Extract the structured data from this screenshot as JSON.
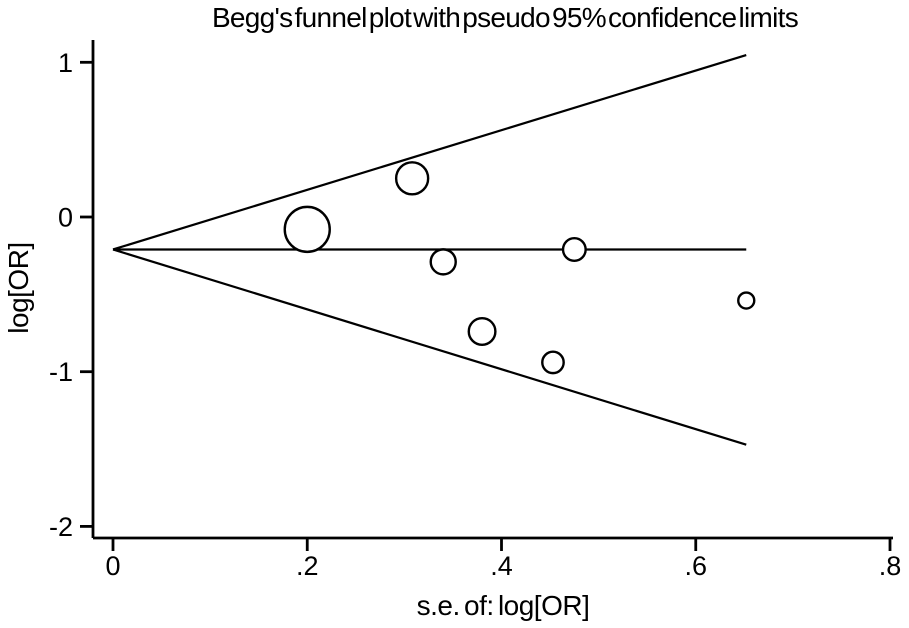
{
  "chart_data": {
    "type": "scatter",
    "title": "Begg's funnel plot with pseudo 95% confidence limits",
    "xlabel": "s.e. of: log[OR]",
    "ylabel": "log[OR]",
    "xlim": [
      0,
      0.8
    ],
    "ylim": [
      -2.08,
      1.14
    ],
    "x_ticks": [
      {
        "value": 0.0,
        "label": "0"
      },
      {
        "value": 0.2,
        "label": ".2"
      },
      {
        "value": 0.4,
        "label": ".4"
      },
      {
        "value": 0.6,
        "label": ".6"
      },
      {
        "value": 0.8,
        "label": ".8"
      }
    ],
    "y_ticks": [
      {
        "value": 1,
        "label": "1"
      },
      {
        "value": 0,
        "label": "0"
      },
      {
        "value": -1,
        "label": "-1"
      },
      {
        "value": -2,
        "label": "-2"
      }
    ],
    "grid": false,
    "legend": "none",
    "pooled_log_or": -0.21,
    "funnel": {
      "center_log_or": -0.21,
      "max_se": 0.652,
      "upper_end_log_or": 1.047,
      "lower_end_log_or": -1.472
    },
    "points": [
      {
        "se": 0.2,
        "log_or": -0.08,
        "radius_px": 22.5
      },
      {
        "se": 0.308,
        "log_or": 0.25,
        "radius_px": 16
      },
      {
        "se": 0.34,
        "log_or": -0.29,
        "radius_px": 12.5
      },
      {
        "se": 0.475,
        "log_or": -0.21,
        "radius_px": 11.3
      },
      {
        "se": 0.38,
        "log_or": -0.74,
        "radius_px": 13.3
      },
      {
        "se": 0.453,
        "log_or": -0.94,
        "radius_px": 10.7
      },
      {
        "se": 0.652,
        "log_or": -0.54,
        "radius_px": 8
      }
    ],
    "colors": {
      "foreground": "#000000",
      "background": "#ffffff",
      "marker_fill": "#ffffff"
    }
  }
}
